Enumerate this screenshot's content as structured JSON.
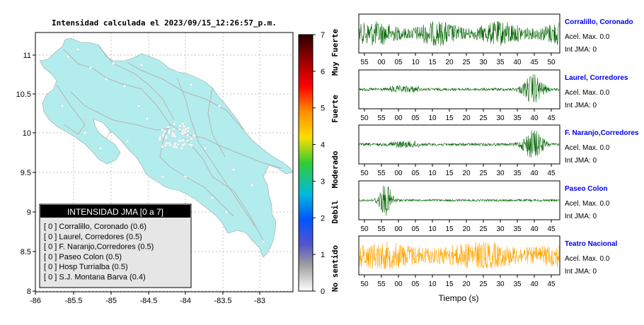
{
  "map": {
    "title": "Intensidad calculada el 2023/09/15_12:26:57_p.m.",
    "x_ticks": [
      "-86",
      "-85.5",
      "-85",
      "-84.5",
      "-84",
      "-83.5",
      "-83"
    ],
    "y_ticks": [
      "11",
      "10.5",
      "10",
      "9.5",
      "9",
      "8.5",
      "8"
    ],
    "land_color": "#b3ecec",
    "legend": {
      "header": "INTENSIDAD JMA [0 a 7]",
      "items": [
        "[ 0 ]  Corralillo, Coronado (0.6)",
        "[ 0 ]  Laurel, Corredores (0.5)",
        "[ 0 ]  F. Naranjo,Corredores (0.5)",
        "[ 0 ]  Paseo Colon (0.5)",
        "[ 0 ]  Hosp Turrialba (0.5)",
        "[ 0 ]  S.J. Montana Barva (0.4)"
      ]
    }
  },
  "colorbar": {
    "ticks": [
      "7",
      "6",
      "5",
      "4",
      "3",
      "2",
      "1",
      "0"
    ],
    "category_labels": [
      "Muy Fuerte",
      "Fuerte",
      "Moderado",
      "Debil",
      "No sentido"
    ]
  },
  "chart_data": {
    "type": "line",
    "xlabel": "Tiempo (s)",
    "series": [
      {
        "name": "Corralillo, Coronado",
        "accel_label": "Acel. Max. 0.0",
        "int_label": "Int JMA: 0",
        "color": "#006400",
        "x_ticks": [
          "55",
          "00",
          "05",
          "10",
          "15",
          "20",
          "25",
          "30",
          "35",
          "40",
          "45",
          "50"
        ],
        "envelope": "uniform"
      },
      {
        "name": "Laurel, Corredores",
        "accel_label": "Acel. Max. 0.0",
        "int_label": "Int JMA: 0",
        "color": "#006400",
        "x_ticks": [
          "50",
          "55",
          "00",
          "05",
          "10",
          "15",
          "20",
          "25",
          "30",
          "35",
          "40",
          "45"
        ],
        "envelope": "late-burst"
      },
      {
        "name": "F. Naranjo,Corredores",
        "accel_label": "Acel. Max. 0.0",
        "int_label": "Int JMA: 0",
        "color": "#006400",
        "x_ticks": [
          "50",
          "55",
          "00",
          "05",
          "10",
          "15",
          "20",
          "25",
          "30",
          "35",
          "40",
          "45"
        ],
        "envelope": "late-burst"
      },
      {
        "name": "Paseo Colon",
        "accel_label": "Acel. Max. 0.0",
        "int_label": "Int JMA: 0",
        "color": "#006400",
        "x_ticks": [
          "50",
          "55",
          "00",
          "05",
          "10",
          "15",
          "20",
          "25",
          "30",
          "35",
          "40",
          "45"
        ],
        "envelope": "early-burst"
      },
      {
        "name": "Teatro Nacional",
        "accel_label": "Acel. Max. 0.0",
        "int_label": "Int JMA: 0",
        "color": "#ffa500",
        "x_ticks": [
          "50",
          "55",
          "00",
          "05",
          "10",
          "15",
          "20",
          "25",
          "30",
          "35",
          "40",
          "45"
        ],
        "envelope": "uniform-large"
      }
    ]
  }
}
